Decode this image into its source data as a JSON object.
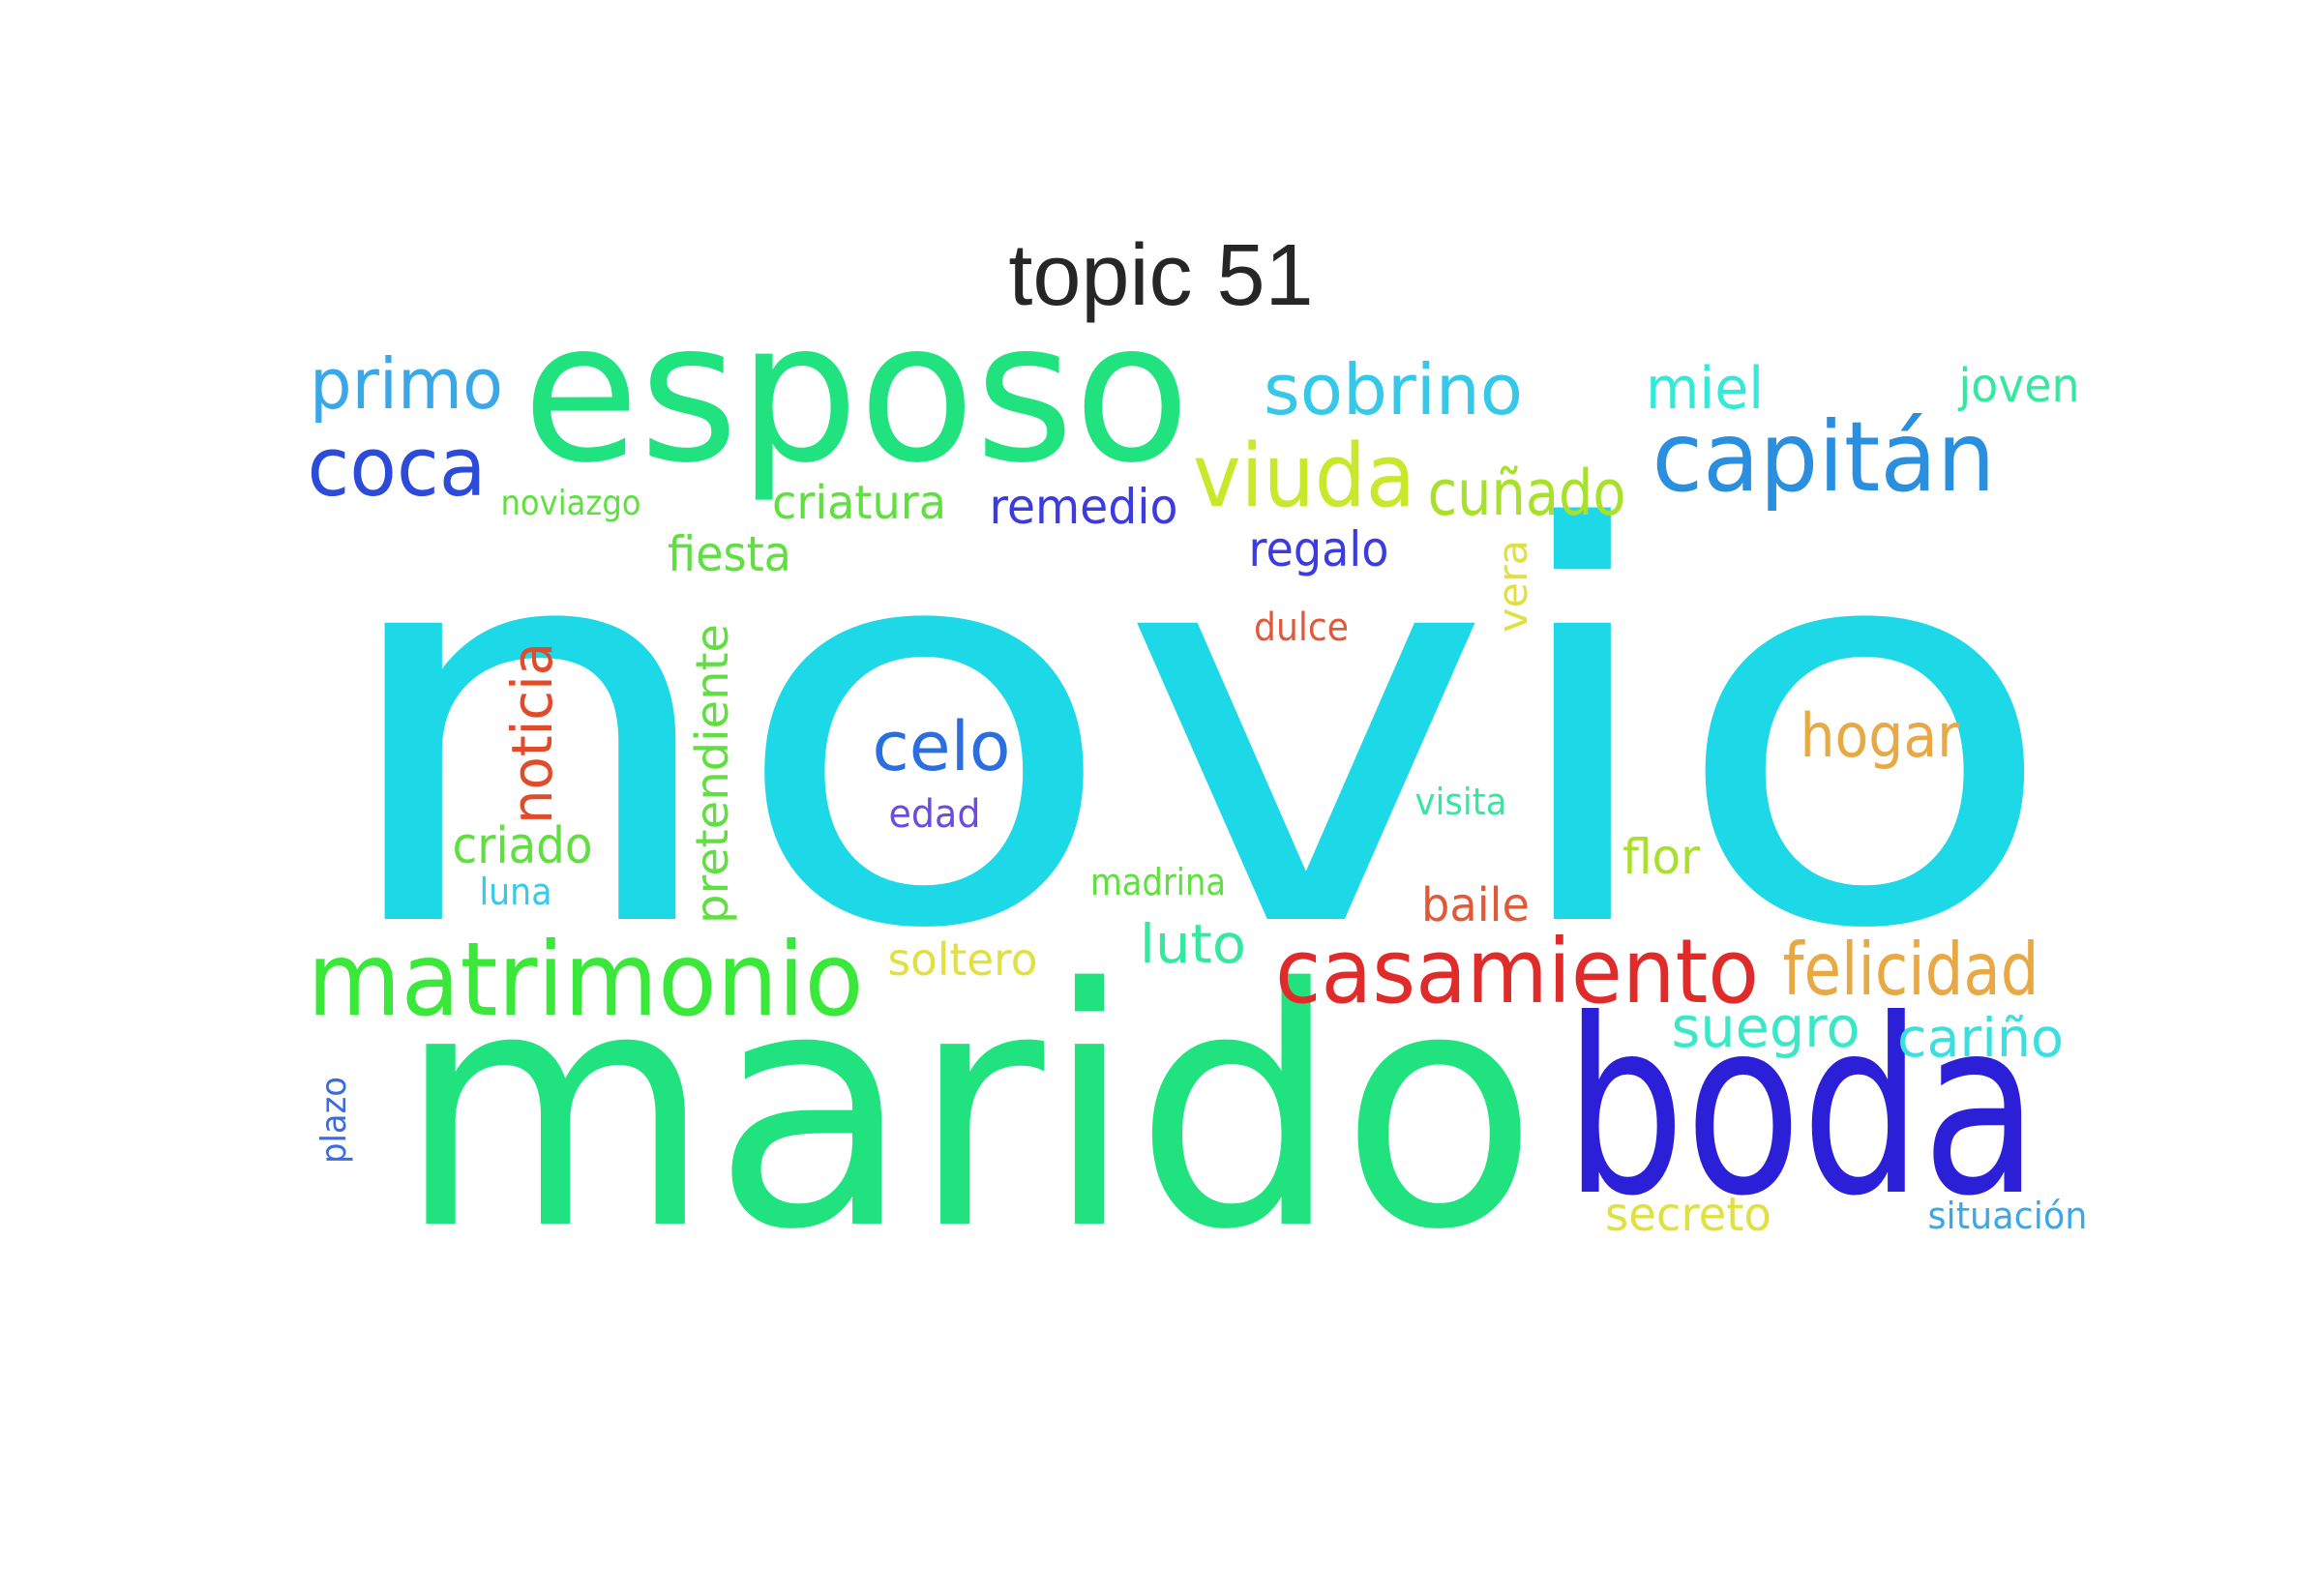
{
  "title": "topic 51",
  "words": [
    {
      "text": "novio",
      "color": "#1dd8e6"
    },
    {
      "text": "marido",
      "color": "#20e37f"
    },
    {
      "text": "esposo",
      "color": "#20e37f"
    },
    {
      "text": "boda",
      "color": "#2b20d8"
    },
    {
      "text": "casamiento",
      "color": "#e02b2b"
    },
    {
      "text": "matrimonio",
      "color": "#3ae83a"
    },
    {
      "text": "capitán",
      "color": "#2b8fe0"
    },
    {
      "text": "viuda",
      "color": "#c8e82b"
    },
    {
      "text": "felicidad",
      "color": "#e8a843"
    },
    {
      "text": "coca",
      "color": "#2b4bd8"
    },
    {
      "text": "primo",
      "color": "#3aa8e8"
    },
    {
      "text": "sobrino",
      "color": "#35c8e8"
    },
    {
      "text": "cuñado",
      "color": "#a8e02b"
    },
    {
      "text": "celo",
      "color": "#2b6ee0"
    },
    {
      "text": "hogar",
      "color": "#e8a843"
    },
    {
      "text": "suegro",
      "color": "#3ae8c8"
    },
    {
      "text": "noticia",
      "color": "#e04b2b"
    },
    {
      "text": "pretendiente",
      "color": "#60e040"
    },
    {
      "text": "miel",
      "color": "#35e8d8"
    },
    {
      "text": "cariño",
      "color": "#3ae0e0"
    },
    {
      "text": "criatura",
      "color": "#60e040"
    },
    {
      "text": "remedio",
      "color": "#3b3be0"
    },
    {
      "text": "fiesta",
      "color": "#60e040"
    },
    {
      "text": "regalo",
      "color": "#3b3be0"
    },
    {
      "text": "luto",
      "color": "#35e8a0"
    },
    {
      "text": "criado",
      "color": "#60e040"
    },
    {
      "text": "soltero",
      "color": "#e0e040"
    },
    {
      "text": "joven",
      "color": "#35e8a0"
    },
    {
      "text": "flor",
      "color": "#a8e02b"
    },
    {
      "text": "baile",
      "color": "#e05a3a"
    },
    {
      "text": "vera",
      "color": "#e0e040"
    },
    {
      "text": "secreto",
      "color": "#e0e040"
    },
    {
      "text": "situación",
      "color": "#3aa8e8"
    },
    {
      "text": "dulce",
      "color": "#e05a3a"
    },
    {
      "text": "edad",
      "color": "#6b4be0"
    },
    {
      "text": "visita",
      "color": "#35e8a0"
    },
    {
      "text": "madrina",
      "color": "#60e040"
    },
    {
      "text": "noviazgo",
      "color": "#60e040"
    },
    {
      "text": "luna",
      "color": "#3ac8e8"
    },
    {
      "text": "plazo",
      "color": "#3a6be0"
    }
  ]
}
